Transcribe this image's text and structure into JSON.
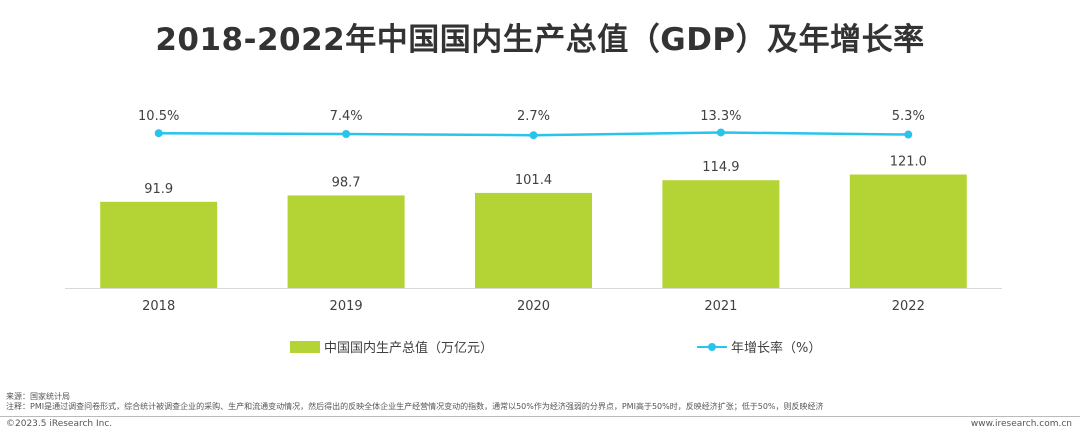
{
  "title": "2018-2022年中国国内生产总值（GDP）及年增长率",
  "legend": {
    "gdp": "中国国内生产总值（万亿元）",
    "growth": "年增长率（%）"
  },
  "source": "来源：国家统计局",
  "note": "注释：PMI是通过调查问卷形式，综合统计被调查企业的采购、生产和流通变动情况，然后得出的反映全体企业生产经营情况变动的指数，通常以50%作为经济强弱的分界点，PMI高于50%时，反映经济扩张；低于50%，则反映经济",
  "copyright": "©2023.5 iResearch Inc.",
  "website": "www.iresearch.com.cn",
  "colors": {
    "bar": "#b4d334",
    "line": "#29c4ec",
    "axis": "#d9d9d9"
  },
  "chart_data": {
    "type": "bar",
    "title": "2018-2022年中国国内生产总值（GDP）及年增长率",
    "categories": [
      "2018",
      "2019",
      "2020",
      "2021",
      "2022"
    ],
    "series": [
      {
        "name": "中国国内生产总值（万亿元）",
        "type": "bar",
        "values": [
          91.9,
          98.7,
          101.4,
          114.9,
          121.0
        ],
        "labels": [
          "91.9",
          "98.7",
          "101.4",
          "114.9",
          "121.0"
        ]
      },
      {
        "name": "年增长率（%）",
        "type": "line",
        "values": [
          10.5,
          7.4,
          2.7,
          13.3,
          5.3
        ],
        "labels": [
          "10.5%",
          "7.4%",
          "2.7%",
          "13.3%",
          "5.3%"
        ]
      }
    ],
    "legend_position": "bottom",
    "grid": false
  }
}
